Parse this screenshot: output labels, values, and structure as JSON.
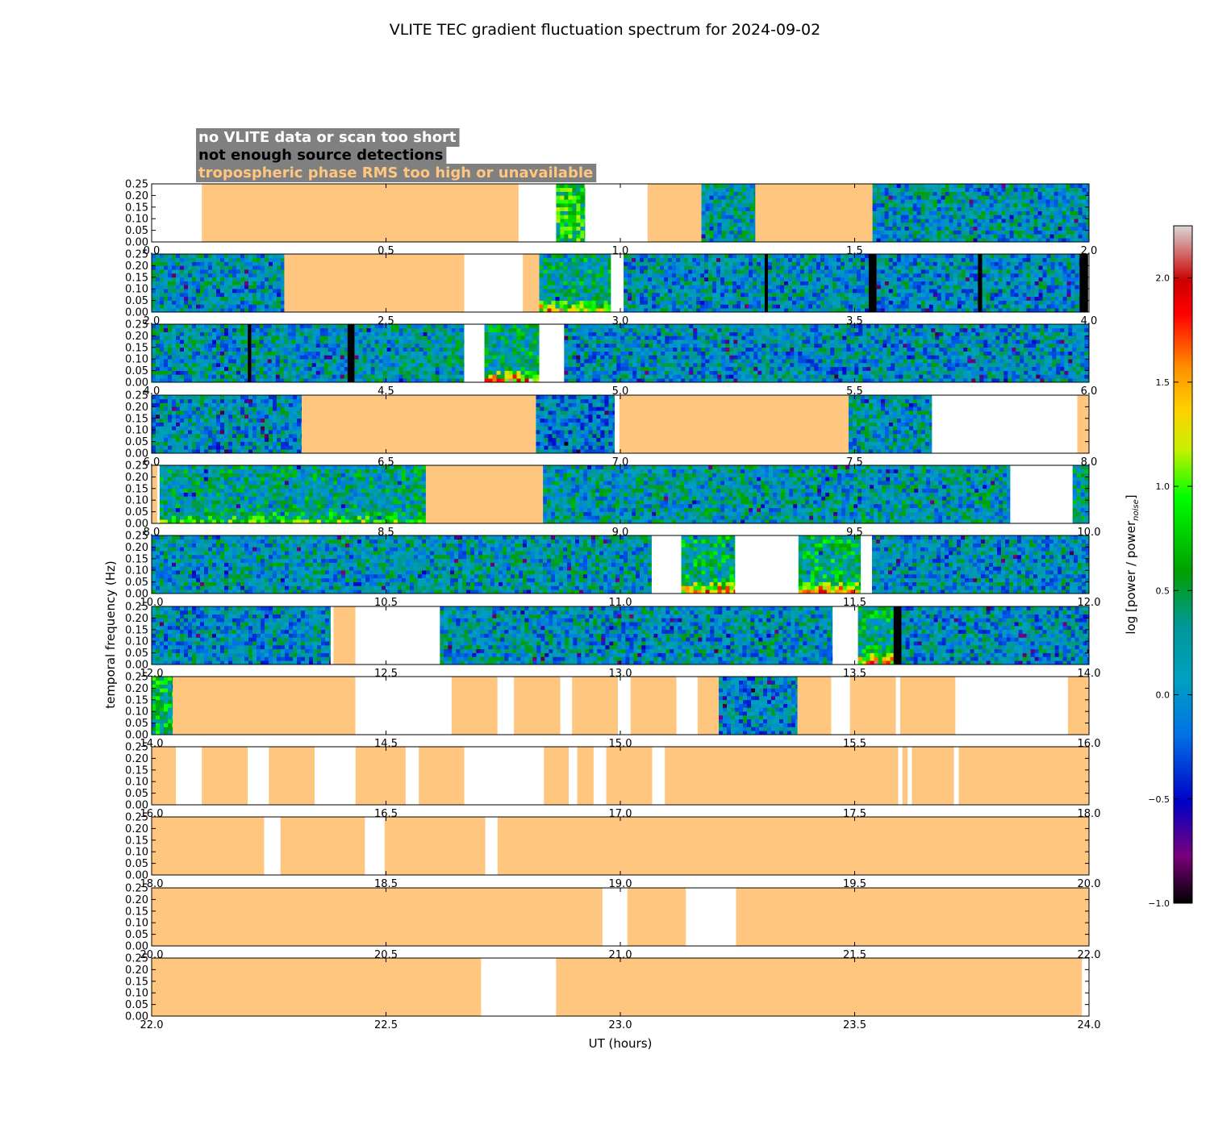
{
  "chart_data": {
    "type": "heatmap",
    "title": "VLITE TEC gradient fluctuation spectrum for 2024-09-02",
    "xlabel": "UT (hours)",
    "ylabel": "temporal frequency (Hz)",
    "colorbar_label": "log [power / power",
    "colorbar_label_sub": "noise",
    "colorbar_label_end": "]",
    "colorbar_range": [
      -1.0,
      2.25
    ],
    "colorbar_ticks": [
      "2.0",
      "1.5",
      "1.0",
      "0.5",
      "0.0",
      "−0.5",
      "−1.0"
    ],
    "colorbar_tick_values": [
      2.0,
      1.5,
      1.0,
      0.5,
      0.0,
      -0.5,
      -1.0
    ],
    "ylim": [
      0.0,
      0.25
    ],
    "y_ticks": [
      "0.00",
      "0.05",
      "0.10",
      "0.15",
      "0.20",
      "0.25"
    ],
    "legend": [
      {
        "label": "no VLITE data or scan too short",
        "color": "#ffffff"
      },
      {
        "label": "not enough source detections",
        "color": "#000000"
      },
      {
        "label": "tropospheric phase RMS too high or unavailable",
        "color": "#ffc680"
      }
    ],
    "colors": {
      "flag_tropo": "#ffc680",
      "flag_nodata": "#ffffff",
      "flag_nodet": "#000000",
      "legend_bg": "#808080"
    },
    "panels": [
      {
        "xlim": [
          0.0,
          2.0
        ],
        "x_ticks": [
          "0.0",
          "0.5",
          "1.0",
          "1.5",
          "2.0"
        ],
        "segments": [
          {
            "start": 0.0,
            "end": 0.107,
            "state": "no_data"
          },
          {
            "start": 0.107,
            "end": 0.783,
            "state": "tropo"
          },
          {
            "start": 0.783,
            "end": 0.863,
            "state": "no_data"
          },
          {
            "start": 0.863,
            "end": 0.925,
            "state": "data",
            "level": 0.7
          },
          {
            "start": 0.925,
            "end": 1.058,
            "state": "no_data"
          },
          {
            "start": 1.058,
            "end": 1.173,
            "state": "tropo"
          },
          {
            "start": 1.173,
            "end": 1.288,
            "state": "data",
            "level": 0.15
          },
          {
            "start": 1.288,
            "end": 1.538,
            "state": "tropo"
          },
          {
            "start": 1.538,
            "end": 2.0,
            "state": "data",
            "level": 0.1
          }
        ]
      },
      {
        "xlim": [
          2.0,
          4.0
        ],
        "x_ticks": [
          "2.0",
          "2.5",
          "3.0",
          "3.5",
          "4.0"
        ],
        "segments": [
          {
            "start": 2.0,
            "end": 2.283,
            "state": "data",
            "level": 0.1
          },
          {
            "start": 2.283,
            "end": 2.667,
            "state": "tropo"
          },
          {
            "start": 2.667,
            "end": 2.792,
            "state": "no_data"
          },
          {
            "start": 2.792,
            "end": 2.827,
            "state": "tropo"
          },
          {
            "start": 2.827,
            "end": 2.98,
            "state": "data",
            "level": 0.3,
            "low_freq_boost": 1.2
          },
          {
            "start": 2.98,
            "end": 3.007,
            "state": "no_data"
          },
          {
            "start": 3.007,
            "end": 3.308,
            "state": "data",
            "level": 0.05
          },
          {
            "start": 3.308,
            "end": 3.315,
            "state": "no_detections"
          },
          {
            "start": 3.315,
            "end": 3.53,
            "state": "data",
            "level": 0.05
          },
          {
            "start": 3.53,
            "end": 3.547,
            "state": "no_detections"
          },
          {
            "start": 3.547,
            "end": 3.763,
            "state": "data",
            "level": 0.05
          },
          {
            "start": 3.763,
            "end": 3.772,
            "state": "no_detections"
          },
          {
            "start": 3.772,
            "end": 3.98,
            "state": "data",
            "level": 0.05
          },
          {
            "start": 3.98,
            "end": 3.998,
            "state": "no_detections"
          }
        ]
      },
      {
        "xlim": [
          4.0,
          6.0
        ],
        "x_ticks": [
          "4.0",
          "4.5",
          "5.0",
          "5.5",
          "6.0"
        ],
        "segments": [
          {
            "start": 4.0,
            "end": 4.205,
            "state": "data",
            "level": 0.1
          },
          {
            "start": 4.205,
            "end": 4.213,
            "state": "no_detections"
          },
          {
            "start": 4.213,
            "end": 4.418,
            "state": "data",
            "level": 0.1
          },
          {
            "start": 4.418,
            "end": 4.433,
            "state": "no_detections"
          },
          {
            "start": 4.433,
            "end": 4.667,
            "state": "data",
            "level": 0.15
          },
          {
            "start": 4.667,
            "end": 4.71,
            "state": "no_data"
          },
          {
            "start": 4.71,
            "end": 4.827,
            "state": "data",
            "level": 0.3,
            "low_freq_boost": 1.6
          },
          {
            "start": 4.827,
            "end": 4.88,
            "state": "no_data"
          },
          {
            "start": 4.88,
            "end": 6.0,
            "state": "data",
            "level": 0.05
          }
        ]
      },
      {
        "xlim": [
          6.0,
          8.0
        ],
        "x_ticks": [
          "6.0",
          "6.5",
          "7.0",
          "7.5",
          "8.0"
        ],
        "segments": [
          {
            "start": 6.0,
            "end": 6.32,
            "state": "data",
            "level": 0.05
          },
          {
            "start": 6.32,
            "end": 6.82,
            "state": "tropo"
          },
          {
            "start": 6.82,
            "end": 6.988,
            "state": "data",
            "level": -0.05
          },
          {
            "start": 6.988,
            "end": 6.998,
            "state": "no_data"
          },
          {
            "start": 6.998,
            "end": 7.487,
            "state": "tropo"
          },
          {
            "start": 7.487,
            "end": 7.665,
            "state": "data",
            "level": 0.1
          },
          {
            "start": 7.665,
            "end": 7.975,
            "state": "no_data"
          },
          {
            "start": 7.975,
            "end": 8.0,
            "state": "tropo"
          }
        ]
      },
      {
        "xlim": [
          8.0,
          10.0
        ],
        "x_ticks": [
          "8.0",
          "8.5",
          "9.0",
          "9.5",
          "10.0"
        ],
        "segments": [
          {
            "start": 8.0,
            "end": 8.012,
            "state": "tropo"
          },
          {
            "start": 8.012,
            "end": 8.017,
            "state": "no_data"
          },
          {
            "start": 8.017,
            "end": 8.585,
            "state": "data",
            "level": 0.25,
            "low_freq_boost": 0.6
          },
          {
            "start": 8.585,
            "end": 8.835,
            "state": "tropo"
          },
          {
            "start": 8.835,
            "end": 9.832,
            "state": "data",
            "level": 0.15
          },
          {
            "start": 9.832,
            "end": 9.965,
            "state": "no_data"
          },
          {
            "start": 9.965,
            "end": 10.0,
            "state": "data",
            "level": 0.2
          }
        ]
      },
      {
        "xlim": [
          10.0,
          12.0
        ],
        "x_ticks": [
          "10.0",
          "10.5",
          "11.0",
          "11.5",
          "12.0"
        ],
        "segments": [
          {
            "start": 10.0,
            "end": 11.067,
            "state": "data",
            "level": 0.12
          },
          {
            "start": 11.067,
            "end": 11.13,
            "state": "no_data"
          },
          {
            "start": 11.13,
            "end": 11.245,
            "state": "data",
            "level": 0.4,
            "low_freq_boost": 1.4
          },
          {
            "start": 11.245,
            "end": 11.38,
            "state": "no_data"
          },
          {
            "start": 11.38,
            "end": 11.513,
            "state": "data",
            "level": 0.45,
            "low_freq_boost": 1.3
          },
          {
            "start": 11.513,
            "end": 11.537,
            "state": "no_data"
          },
          {
            "start": 11.537,
            "end": 12.0,
            "state": "data",
            "level": 0.05
          }
        ]
      },
      {
        "xlim": [
          12.0,
          14.0
        ],
        "x_ticks": [
          "12.0",
          "12.5",
          "13.0",
          "13.5",
          "14.0"
        ],
        "segments": [
          {
            "start": 12.0,
            "end": 12.382,
            "state": "data",
            "level": 0.05
          },
          {
            "start": 12.382,
            "end": 12.388,
            "state": "no_data"
          },
          {
            "start": 12.388,
            "end": 12.435,
            "state": "tropo"
          },
          {
            "start": 12.435,
            "end": 12.615,
            "state": "no_data"
          },
          {
            "start": 12.615,
            "end": 13.453,
            "state": "data",
            "level": 0.08
          },
          {
            "start": 13.453,
            "end": 13.507,
            "state": "no_data"
          },
          {
            "start": 13.507,
            "end": 13.583,
            "state": "data",
            "level": 0.4,
            "low_freq_boost": 1.4
          },
          {
            "start": 13.583,
            "end": 13.6,
            "state": "no_detections"
          },
          {
            "start": 13.6,
            "end": 14.0,
            "state": "data",
            "level": 0.05
          }
        ]
      },
      {
        "xlim": [
          14.0,
          16.0
        ],
        "x_ticks": [
          "14.0",
          "14.5",
          "15.0",
          "15.5",
          "16.0"
        ],
        "segments": [
          {
            "start": 14.0,
            "end": 14.045,
            "state": "data",
            "level": 0.5
          },
          {
            "start": 14.045,
            "end": 14.435,
            "state": "tropo"
          },
          {
            "start": 14.435,
            "end": 14.64,
            "state": "no_data"
          },
          {
            "start": 14.64,
            "end": 14.738,
            "state": "tropo"
          },
          {
            "start": 14.738,
            "end": 14.773,
            "state": "no_data"
          },
          {
            "start": 14.773,
            "end": 14.872,
            "state": "tropo"
          },
          {
            "start": 14.872,
            "end": 14.897,
            "state": "no_data"
          },
          {
            "start": 14.897,
            "end": 14.995,
            "state": "tropo"
          },
          {
            "start": 14.995,
            "end": 15.022,
            "state": "no_data"
          },
          {
            "start": 15.022,
            "end": 15.12,
            "state": "tropo"
          },
          {
            "start": 15.12,
            "end": 15.165,
            "state": "no_data"
          },
          {
            "start": 15.165,
            "end": 15.21,
            "state": "tropo"
          },
          {
            "start": 15.21,
            "end": 15.378,
            "state": "data",
            "level": 0.0
          },
          {
            "start": 15.378,
            "end": 15.45,
            "state": "tropo"
          },
          {
            "start": 15.45,
            "end": 15.49,
            "state": "no_data"
          },
          {
            "start": 15.49,
            "end": 15.588,
            "state": "tropo"
          },
          {
            "start": 15.588,
            "end": 15.597,
            "state": "no_data"
          },
          {
            "start": 15.597,
            "end": 15.715,
            "state": "tropo"
          },
          {
            "start": 15.715,
            "end": 15.955,
            "state": "no_data"
          },
          {
            "start": 15.955,
            "end": 16.0,
            "state": "tropo"
          }
        ]
      },
      {
        "xlim": [
          16.0,
          18.0
        ],
        "x_ticks": [
          "16.0",
          "16.5",
          "17.0",
          "17.5",
          "18.0"
        ],
        "segments": [
          {
            "start": 16.0,
            "end": 16.052,
            "state": "tropo"
          },
          {
            "start": 16.052,
            "end": 16.107,
            "state": "no_data"
          },
          {
            "start": 16.107,
            "end": 16.205,
            "state": "tropo"
          },
          {
            "start": 16.205,
            "end": 16.25,
            "state": "no_data"
          },
          {
            "start": 16.25,
            "end": 16.348,
            "state": "tropo"
          },
          {
            "start": 16.348,
            "end": 16.435,
            "state": "no_data"
          },
          {
            "start": 16.435,
            "end": 16.542,
            "state": "tropo"
          },
          {
            "start": 16.542,
            "end": 16.57,
            "state": "no_data"
          },
          {
            "start": 16.57,
            "end": 16.667,
            "state": "tropo"
          },
          {
            "start": 16.667,
            "end": 16.837,
            "state": "no_data"
          },
          {
            "start": 16.837,
            "end": 16.89,
            "state": "tropo"
          },
          {
            "start": 16.89,
            "end": 16.908,
            "state": "no_data"
          },
          {
            "start": 16.908,
            "end": 16.943,
            "state": "tropo"
          },
          {
            "start": 16.943,
            "end": 16.97,
            "state": "no_data"
          },
          {
            "start": 16.97,
            "end": 17.068,
            "state": "tropo"
          },
          {
            "start": 17.068,
            "end": 17.095,
            "state": "no_data"
          },
          {
            "start": 17.095,
            "end": 17.593,
            "state": "tropo"
          },
          {
            "start": 17.593,
            "end": 17.602,
            "state": "no_data"
          },
          {
            "start": 17.602,
            "end": 17.613,
            "state": "tropo"
          },
          {
            "start": 17.613,
            "end": 17.622,
            "state": "no_data"
          },
          {
            "start": 17.622,
            "end": 17.712,
            "state": "tropo"
          },
          {
            "start": 17.712,
            "end": 17.722,
            "state": "no_data"
          },
          {
            "start": 17.722,
            "end": 18.0,
            "state": "tropo"
          }
        ]
      },
      {
        "xlim": [
          18.0,
          20.0
        ],
        "x_ticks": [
          "18.0",
          "18.5",
          "19.0",
          "19.5",
          "20.0"
        ],
        "segments": [
          {
            "start": 18.0,
            "end": 18.24,
            "state": "tropo"
          },
          {
            "start": 18.24,
            "end": 18.275,
            "state": "no_data"
          },
          {
            "start": 18.275,
            "end": 18.455,
            "state": "tropo"
          },
          {
            "start": 18.455,
            "end": 18.497,
            "state": "no_data"
          },
          {
            "start": 18.497,
            "end": 18.712,
            "state": "tropo"
          },
          {
            "start": 18.712,
            "end": 18.738,
            "state": "no_data"
          },
          {
            "start": 18.738,
            "end": 20.0,
            "state": "tropo"
          }
        ]
      },
      {
        "xlim": [
          20.0,
          22.0
        ],
        "x_ticks": [
          "20.0",
          "20.5",
          "21.0",
          "21.5",
          "22.0"
        ],
        "segments": [
          {
            "start": 20.0,
            "end": 20.962,
            "state": "tropo"
          },
          {
            "start": 20.962,
            "end": 21.015,
            "state": "no_data"
          },
          {
            "start": 21.015,
            "end": 21.14,
            "state": "tropo"
          },
          {
            "start": 21.14,
            "end": 21.247,
            "state": "no_data"
          },
          {
            "start": 21.247,
            "end": 22.0,
            "state": "tropo"
          }
        ]
      },
      {
        "xlim": [
          22.0,
          24.0
        ],
        "x_ticks": [
          "22.0",
          "22.5",
          "23.0",
          "23.5",
          "24.0"
        ],
        "segments": [
          {
            "start": 22.0,
            "end": 22.703,
            "state": "tropo"
          },
          {
            "start": 22.703,
            "end": 22.863,
            "state": "no_data"
          },
          {
            "start": 22.863,
            "end": 23.985,
            "state": "tropo"
          },
          {
            "start": 23.985,
            "end": 24.0,
            "state": "no_data"
          }
        ]
      }
    ]
  }
}
